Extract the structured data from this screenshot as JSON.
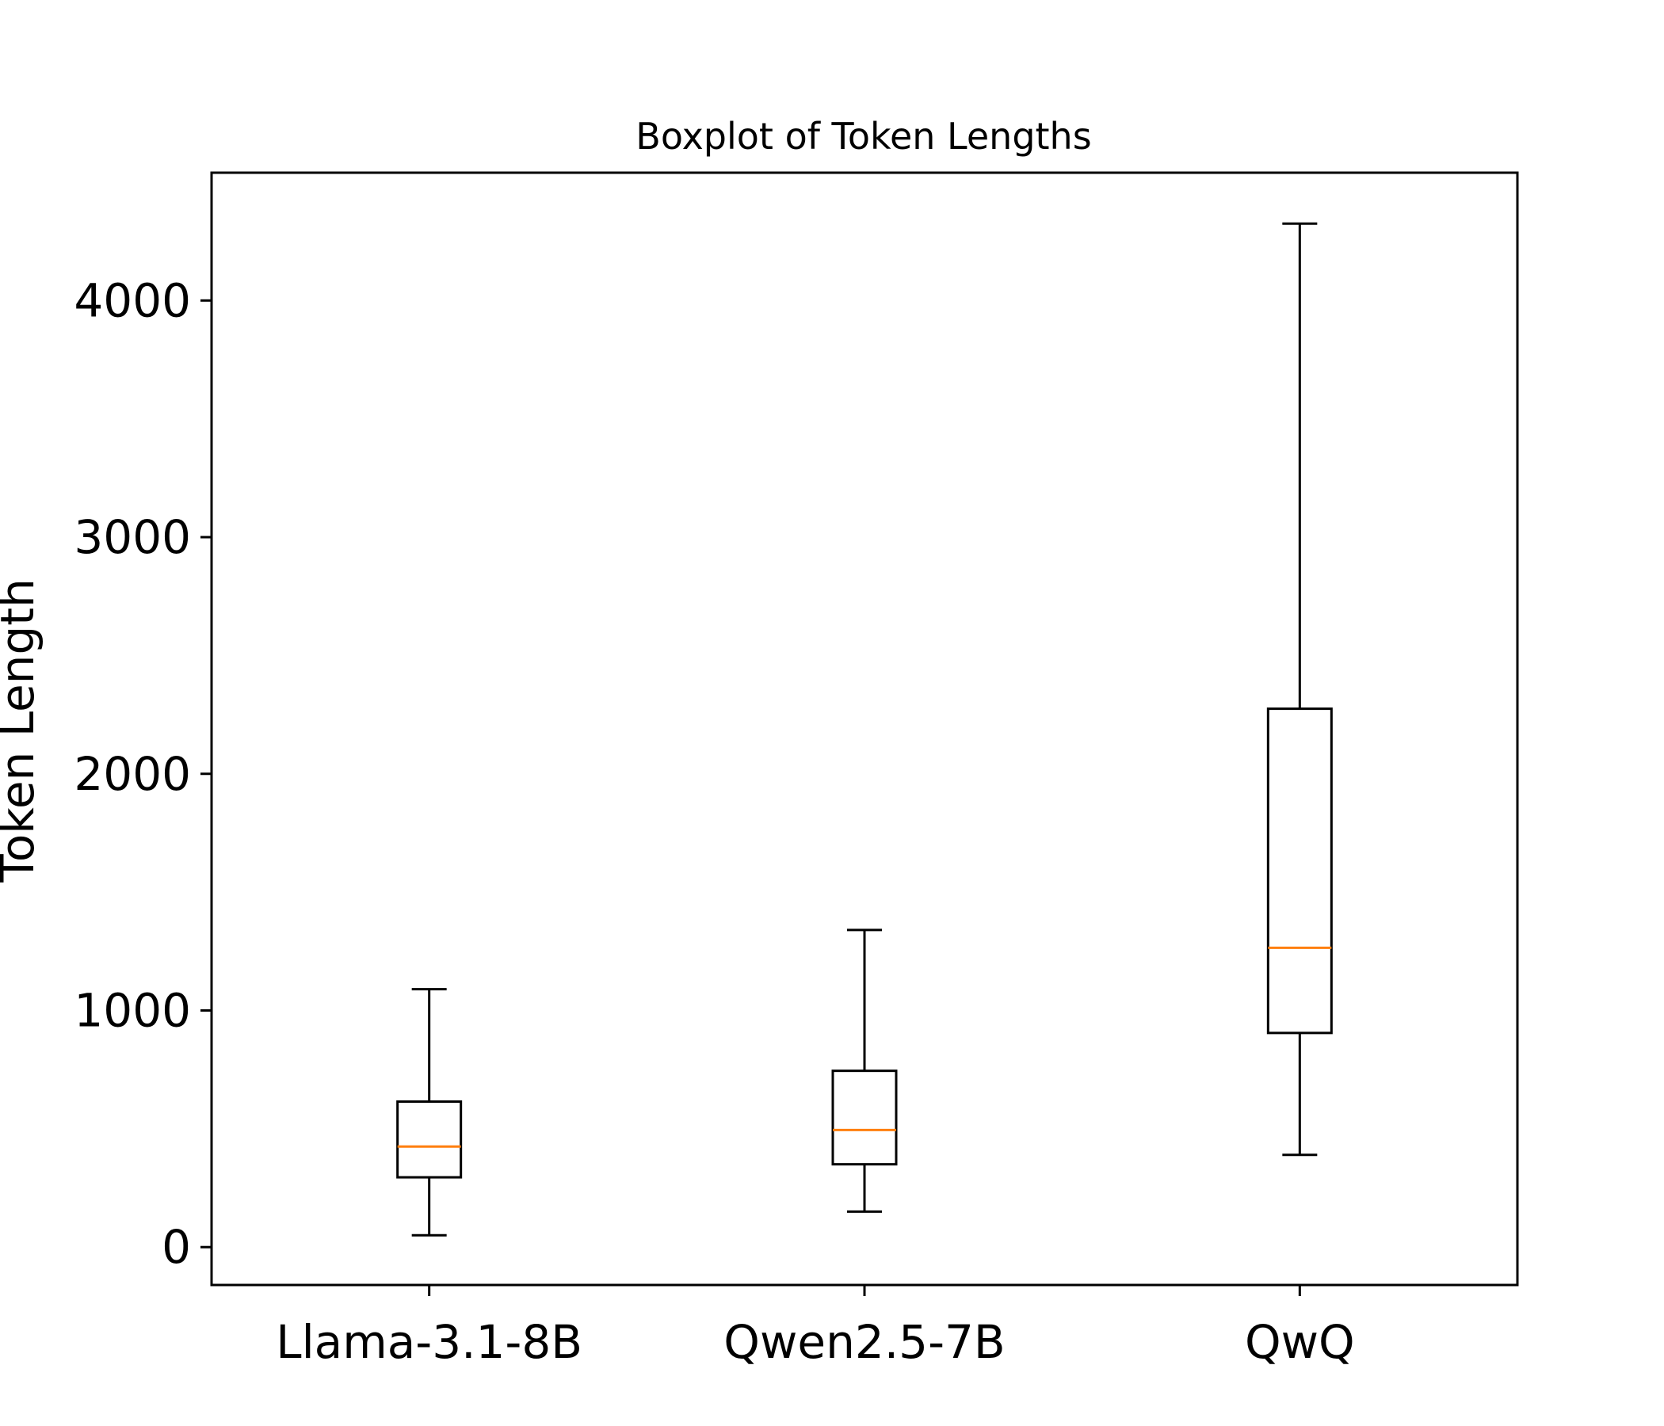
{
  "chart_data": {
    "type": "boxplot",
    "title": "Boxplot of Token Lengths",
    "xlabel": "",
    "ylabel": "Token Length",
    "ylim": [
      -160,
      4540
    ],
    "yticks": [
      0,
      1000,
      2000,
      3000,
      4000
    ],
    "grid": false,
    "legend": "none",
    "categories": [
      "Llama-3.1-8B",
      "Qwen2.5-7B",
      "QwQ"
    ],
    "boxes": [
      {
        "category": "Llama-3.1-8B",
        "whisker_low": 50,
        "q1": 295,
        "median": 425,
        "q3": 615,
        "whisker_high": 1090
      },
      {
        "category": "Qwen2.5-7B",
        "whisker_low": 150,
        "q1": 350,
        "median": 495,
        "q3": 745,
        "whisker_high": 1340
      },
      {
        "category": "QwQ",
        "whisker_low": 390,
        "q1": 905,
        "median": 1265,
        "q3": 2275,
        "whisker_high": 4325
      }
    ],
    "colors": {
      "box": "#000000",
      "median": "#ff7f0e"
    }
  }
}
